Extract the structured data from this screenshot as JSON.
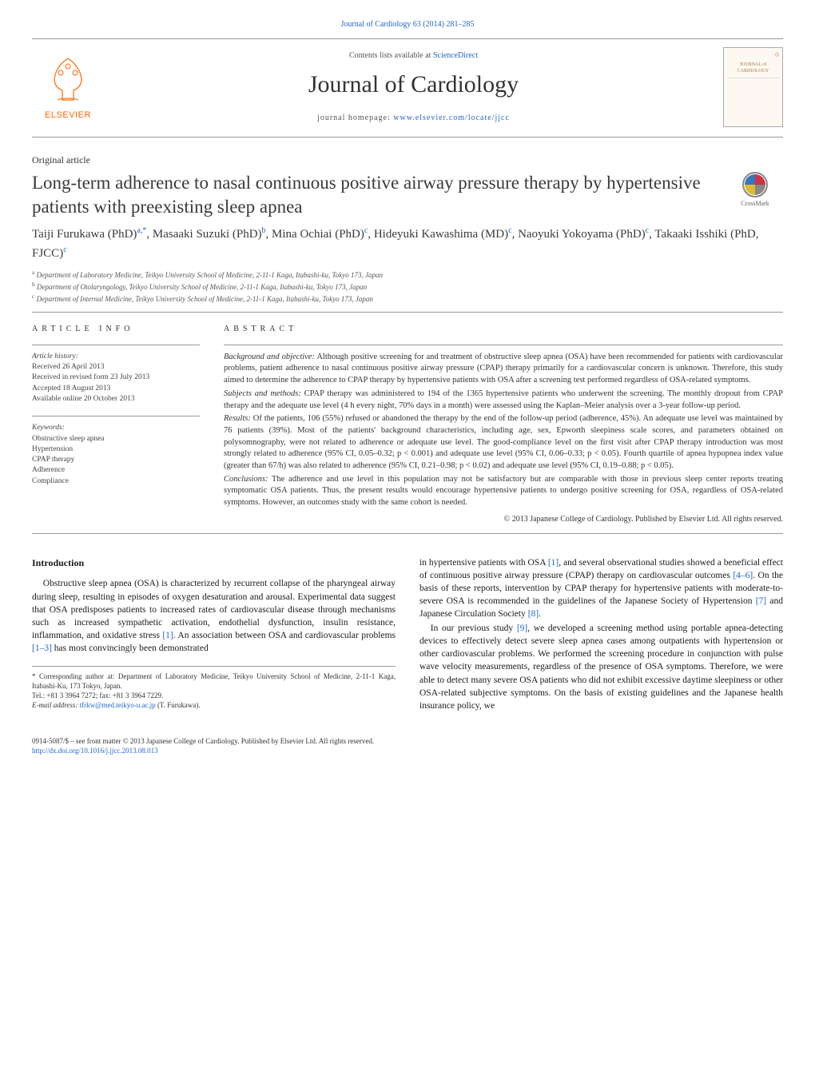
{
  "citation": "Journal of Cardiology 63 (2014) 281–285",
  "header": {
    "contents_prefix": "Contents lists available at ",
    "contents_link": "ScienceDirect",
    "journal_title": "Journal of Cardiology",
    "homepage_prefix": "journal homepage: ",
    "homepage_url": "www.elsevier.com/locate/jjcc",
    "publisher_name": "ELSEVIER",
    "cover_text_top": "JOURNAL of CARDIOLOGY"
  },
  "article": {
    "section_label": "Original article",
    "title": "Long-term adherence to nasal continuous positive airway pressure therapy by hypertensive patients with preexisting sleep apnea",
    "crossmark_label": "CrossMark",
    "authors_html": "Taiji Furukawa (PhD)<sup>a,*</sup>, Masaaki Suzuki (PhD)<sup>b</sup>, Mina Ochiai (PhD)<sup>c</sup>, Hideyuki Kawashima (MD)<sup>c</sup>, Naoyuki Yokoyama (PhD)<sup>c</sup>, Takaaki Isshiki (PhD, FJCC)<sup>c</sup>",
    "affiliations": [
      "a Department of Laboratory Medicine, Teikyo University School of Medicine, 2-11-1 Kaga, Itabashi-ku, Tokyo 173, Japan",
      "b Department of Otolaryngology, Teikyo University School of Medicine, 2-11-1 Kaga, Itabashi-ku, Tokyo 173, Japan",
      "c Department of Internal Medicine, Teikyo University School of Medicine, 2-11-1 Kaga, Itabashi-ku, Tokyo 173, Japan"
    ]
  },
  "article_info": {
    "heading": "article info",
    "history_heading": "Article history:",
    "history": [
      "Received 26 April 2013",
      "Received in revised form 23 July 2013",
      "Accepted 18 August 2013",
      "Available online 20 October 2013"
    ],
    "keywords_heading": "Keywords:",
    "keywords": [
      "Obstructive sleep apnea",
      "Hypertension",
      "CPAP therapy",
      "Adherence",
      "Compliance"
    ]
  },
  "abstract": {
    "heading": "abstract",
    "background_head": "Background and objective:",
    "background": " Although positive screening for and treatment of obstructive sleep apnea (OSA) have been recommended for patients with cardiovascular problems, patient adherence to nasal continuous positive airway pressure (CPAP) therapy primarily for a cardiovascular concern is unknown. Therefore, this study aimed to determine the adherence to CPAP therapy by hypertensive patients with OSA after a screening test performed regardless of OSA-related symptoms.",
    "methods_head": "Subjects and methods:",
    "methods": " CPAP therapy was administered to 194 of the 1365 hypertensive patients who underwent the screening. The monthly dropout from CPAP therapy and the adequate use level (4 h every night, 70% days in a month) were assessed using the Kaplan–Meier analysis over a 3-year follow-up period.",
    "results_head": "Results:",
    "results": " Of the patients, 106 (55%) refused or abandoned the therapy by the end of the follow-up period (adherence, 45%). An adequate use level was maintained by 76 patients (39%). Most of the patients' background characteristics, including age, sex, Epworth sleepiness scale scores, and parameters obtained on polysomnography, were not related to adherence or adequate use level. The good-compliance level on the first visit after CPAP therapy introduction was most strongly related to adherence (95% CI, 0.05–0.32; p < 0.001) and adequate use level (95% CI, 0.06–0.33; p < 0.05). Fourth quartile of apnea hypopnea index value (greater than 67/h) was also related to adherence (95% CI, 0.21–0.98; p < 0.02) and adequate use level (95% CI, 0.19–0.88; p < 0.05).",
    "conclusions_head": "Conclusions:",
    "conclusions": " The adherence and use level in this population may not be satisfactory but are comparable with those in previous sleep center reports treating symptomatic OSA patients. Thus, the present results would encourage hypertensive patients to undergo positive screening for OSA, regardless of OSA-related symptoms. However, an outcomes study with the same cohort is needed.",
    "copyright": "© 2013 Japanese College of Cardiology. Published by Elsevier Ltd. All rights reserved."
  },
  "body": {
    "intro_heading": "Introduction",
    "para1_a": "Obstructive sleep apnea (OSA) is characterized by recurrent collapse of the pharyngeal airway during sleep, resulting in episodes of oxygen desaturation and arousal. Experimental data suggest that OSA predisposes patients to increased rates of cardiovascular disease through mechanisms such as increased sympathetic activation, endothelial dysfunction, insulin resistance, inflammation, and oxidative stress ",
    "ref1": "[1]",
    "para1_b": ". An association between OSA and cardiovascular problems ",
    "ref1_3": "[1–3]",
    "para1_c": " has most convincingly been demonstrated",
    "para2_a": "in hypertensive patients with OSA ",
    "para2_b": ", and several observational studies showed a beneficial effect of continuous positive airway pressure (CPAP) therapy on cardiovascular outcomes ",
    "ref4_6": "[4–6]",
    "para2_c": ". On the basis of these reports, intervention by CPAP therapy for hypertensive patients with moderate-to-severe OSA is recommended in the guidelines of the Japanese Society of Hypertension ",
    "ref7": "[7]",
    "para2_d": " and Japanese Circulation Society ",
    "ref8": "[8]",
    "para2_e": ".",
    "para3_a": "In our previous study ",
    "ref9": "[9]",
    "para3_b": ", we developed a screening method using portable apnea-detecting devices to effectively detect severe sleep apnea cases among outpatients with hypertension or other cardiovascular problems. We performed the screening procedure in conjunction with pulse wave velocity measurements, regardless of the presence of OSA symptoms. Therefore, we were able to detect many severe OSA patients who did not exhibit excessive daytime sleepiness or other OSA-related subjective symptoms. On the basis of existing guidelines and the Japanese health insurance policy, we"
  },
  "footnote": {
    "corr_label": "* Corresponding author at: Department of Laboratory Medicine, Teikyo University School of Medicine, 2-11-1 Kaga, Itabashi-Ku, 173 Tokyo, Japan.",
    "tel": "Tel.: +81 3 3964 7272; fax: +81 3 3964 7229.",
    "email_label": "E-mail address: ",
    "email": "tfrkw@med.teikyo-u.ac.jp",
    "email_suffix": " (T. Furukawa)."
  },
  "footer": {
    "line1": "0914-5087/$ – see front matter © 2013 Japanese College of Cardiology. Published by Elsevier Ltd. All rights reserved.",
    "doi": "http://dx.doi.org/10.1016/j.jjcc.2013.08.013"
  },
  "colors": {
    "link": "#2266cc",
    "elsevier_orange": "#ff6600",
    "text": "#1a1a1a",
    "muted": "#555555",
    "rule": "#999999"
  }
}
